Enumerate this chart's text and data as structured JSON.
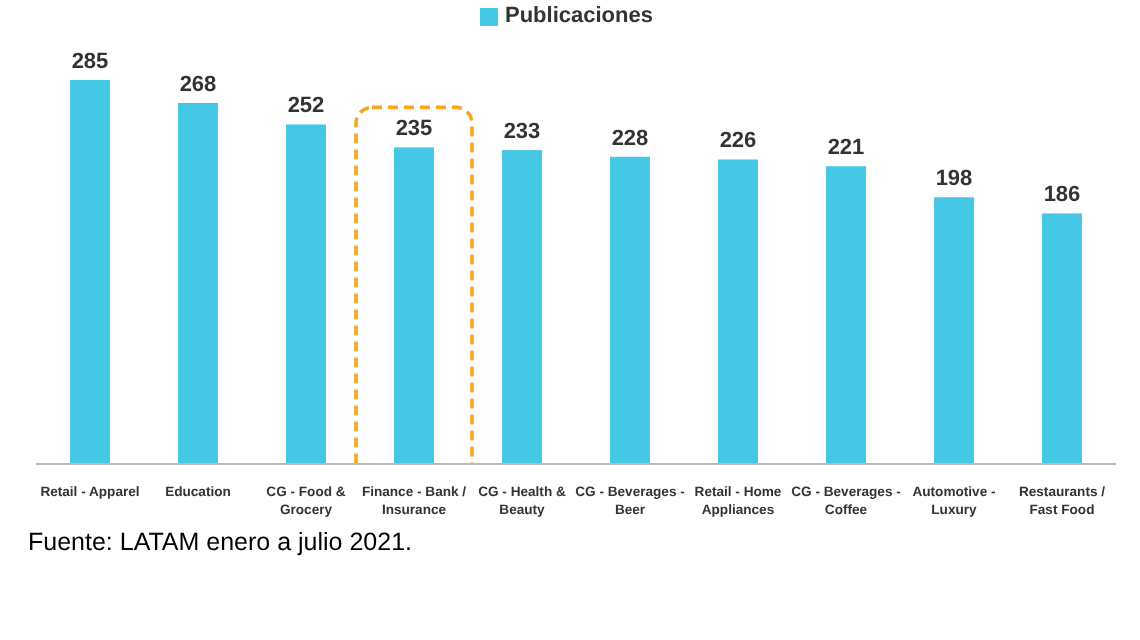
{
  "chart_data": {
    "type": "bar",
    "categories": [
      "Retail - Apparel",
      "Education",
      "CG - Food & Grocery",
      "Finance - Bank / Insurance",
      "CG - Health & Beauty",
      "CG - Beverages - Beer",
      "Retail - Home Appliances",
      "CG - Beverages - Coffee",
      "Automotive - Luxury",
      "Restaurants / Fast Food"
    ],
    "series": [
      {
        "name": "Publicaciones",
        "color": "#45c8e6",
        "values": [
          285,
          268,
          252,
          235,
          233,
          228,
          226,
          221,
          198,
          186
        ]
      }
    ],
    "data_labels": true,
    "legend": "top",
    "annotations": [
      "Fuente: LATAM enero a julio 2021."
    ]
  }
}
